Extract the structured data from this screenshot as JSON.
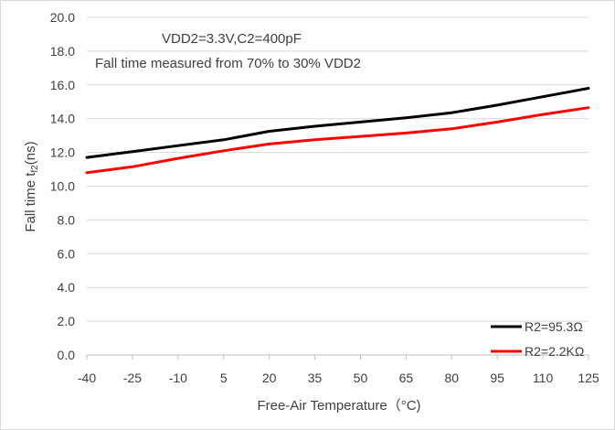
{
  "chart_data": {
    "type": "line",
    "title": "",
    "annotations": [
      "VDD2=3.3V,C2=400pF",
      "Fall time measured from 70% to 30% VDD2"
    ],
    "xlabel": "Free-Air Temperature（°C)",
    "ylabel_main": "Fall time t",
    "ylabel_sub": "f2",
    "ylabel_tail": "(ns)",
    "x": [
      -40,
      -25,
      -10,
      5,
      20,
      35,
      50,
      65,
      80,
      95,
      110,
      125
    ],
    "x_tick_labels": [
      "-40",
      "-25",
      "-10",
      "5",
      "20",
      "35",
      "50",
      "65",
      "80",
      "95",
      "110",
      "125"
    ],
    "xlim": [
      -40,
      125
    ],
    "ylim": [
      0,
      20
    ],
    "y_ticks": [
      0,
      2,
      4,
      6,
      8,
      10,
      12,
      14,
      16,
      18,
      20
    ],
    "y_tick_labels": [
      "0.0",
      "2.0",
      "4.0",
      "6.0",
      "8.0",
      "10.0",
      "12.0",
      "14.0",
      "16.0",
      "18.0",
      "20.0"
    ],
    "grid": "horizontal",
    "legend_position": "bottom-right",
    "series": [
      {
        "name": "R2=95.3Ω",
        "color": "#000000",
        "values": [
          11.7,
          12.05,
          12.4,
          12.75,
          13.25,
          13.55,
          13.8,
          14.05,
          14.35,
          14.8,
          15.3,
          15.8
        ]
      },
      {
        "name": "R2=2.2KΩ",
        "color": "#ff0000",
        "values": [
          10.8,
          11.15,
          11.65,
          12.1,
          12.5,
          12.75,
          12.95,
          13.15,
          13.4,
          13.8,
          14.25,
          14.65
        ]
      }
    ]
  }
}
